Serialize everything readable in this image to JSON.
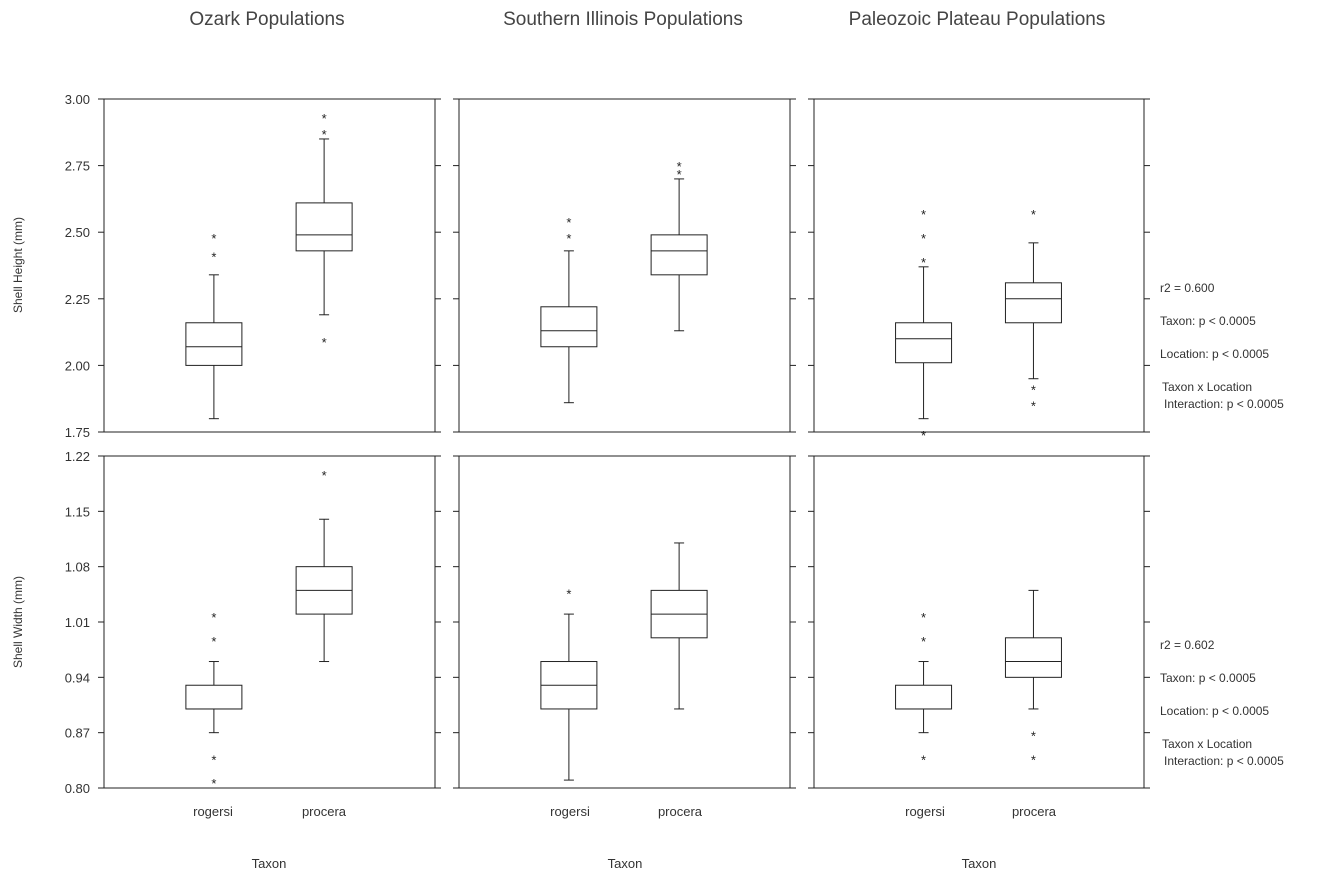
{
  "panel_titles": [
    "Ozark Populations",
    "Southern Illinois Populations",
    "Paleozoic Plateau Populations"
  ],
  "x_label": "Taxon",
  "categories": [
    "rogersi",
    "procera"
  ],
  "stats": {
    "height": {
      "r2": "r2 = 0.600",
      "taxon": "Taxon: p < 0.0005",
      "location": "Location:  p < 0.0005",
      "interaction_1": "Taxon x Location",
      "interaction_2": "Interaction:  p < 0.0005"
    },
    "width": {
      "r2": "r2 = 0.602",
      "taxon": "Taxon: p < 0.0005",
      "location": "Location:  p < 0.0005",
      "interaction_1": "Taxon x Location",
      "interaction_2": "Interaction:  p < 0.0005"
    }
  },
  "chart_data": [
    {
      "type": "boxplot",
      "title": "Ozark Populations",
      "ylabel": "Shell Height (mm)",
      "xlabel": "Taxon",
      "ylim": [
        1.75,
        3.0
      ],
      "yticks": [
        "1.75",
        "2.00",
        "2.25",
        "2.50",
        "2.75",
        "3.00"
      ],
      "categories": [
        "rogersi",
        "procera"
      ],
      "boxes": [
        {
          "category": "rogersi",
          "whisker_low": 1.8,
          "q1": 2.0,
          "median": 2.07,
          "q3": 2.16,
          "whisker_high": 2.34,
          "outliers": [
            2.42,
            2.49
          ]
        },
        {
          "category": "procera",
          "whisker_low": 2.19,
          "q1": 2.43,
          "median": 2.49,
          "q3": 2.61,
          "whisker_high": 2.85,
          "outliers": [
            2.1,
            2.88,
            2.94
          ]
        }
      ]
    },
    {
      "type": "boxplot",
      "title": "Southern Illinois Populations",
      "ylabel": "Shell Height (mm)",
      "xlabel": "Taxon",
      "ylim": [
        1.75,
        3.0
      ],
      "yticks": [
        "1.75",
        "2.00",
        "2.25",
        "2.50",
        "2.75",
        "3.00"
      ],
      "categories": [
        "rogersi",
        "procera"
      ],
      "boxes": [
        {
          "category": "rogersi",
          "whisker_low": 1.86,
          "q1": 2.07,
          "median": 2.13,
          "q3": 2.22,
          "whisker_high": 2.43,
          "outliers": [
            2.49,
            2.55
          ]
        },
        {
          "category": "procera",
          "whisker_low": 2.13,
          "q1": 2.34,
          "median": 2.43,
          "q3": 2.49,
          "whisker_high": 2.7,
          "outliers": [
            2.73,
            2.76
          ]
        }
      ]
    },
    {
      "type": "boxplot",
      "title": "Paleozoic Plateau Populations",
      "ylabel": "Shell Height (mm)",
      "xlabel": "Taxon",
      "ylim": [
        1.75,
        3.0
      ],
      "yticks": [
        "1.75",
        "2.00",
        "2.25",
        "2.50",
        "2.75",
        "3.00"
      ],
      "categories": [
        "rogersi",
        "procera"
      ],
      "boxes": [
        {
          "category": "rogersi",
          "whisker_low": 1.8,
          "q1": 2.01,
          "median": 2.1,
          "q3": 2.16,
          "whisker_high": 2.37,
          "outliers": [
            1.75,
            2.4,
            2.49,
            2.58
          ]
        },
        {
          "category": "procera",
          "whisker_low": 1.95,
          "q1": 2.16,
          "median": 2.25,
          "q3": 2.31,
          "whisker_high": 2.46,
          "outliers": [
            1.86,
            1.92,
            2.58
          ]
        }
      ]
    },
    {
      "type": "boxplot",
      "title": "Ozark Populations",
      "ylabel": "Shell Width (mm)",
      "xlabel": "Taxon",
      "ylim": [
        0.8,
        1.22
      ],
      "yticks": [
        "0.80",
        "0.87",
        "0.94",
        "1.01",
        "1.08",
        "1.15",
        "1.22"
      ],
      "categories": [
        "rogersi",
        "procera"
      ],
      "boxes": [
        {
          "category": "rogersi",
          "whisker_low": 0.87,
          "q1": 0.9,
          "median": 0.9,
          "q3": 0.93,
          "whisker_high": 0.96,
          "outliers": [
            0.81,
            0.84,
            0.99,
            1.02
          ]
        },
        {
          "category": "procera",
          "whisker_low": 0.96,
          "q1": 1.02,
          "median": 1.05,
          "q3": 1.08,
          "whisker_high": 1.14,
          "outliers": [
            1.2
          ]
        }
      ]
    },
    {
      "type": "boxplot",
      "title": "Southern Illinois Populations",
      "ylabel": "Shell Width (mm)",
      "xlabel": "Taxon",
      "ylim": [
        0.8,
        1.22
      ],
      "yticks": [
        "0.80",
        "0.87",
        "0.94",
        "1.01",
        "1.08",
        "1.15",
        "1.22"
      ],
      "categories": [
        "rogersi",
        "procera"
      ],
      "boxes": [
        {
          "category": "rogersi",
          "whisker_low": 0.81,
          "q1": 0.9,
          "median": 0.93,
          "q3": 0.96,
          "whisker_high": 1.02,
          "outliers": [
            1.05
          ]
        },
        {
          "category": "procera",
          "whisker_low": 0.9,
          "q1": 0.99,
          "median": 1.02,
          "q3": 1.05,
          "whisker_high": 1.11,
          "outliers": []
        }
      ]
    },
    {
      "type": "boxplot",
      "title": "Paleozoic Plateau Populations",
      "ylabel": "Shell Width (mm)",
      "xlabel": "Taxon",
      "ylim": [
        0.8,
        1.22
      ],
      "yticks": [
        "0.80",
        "0.87",
        "0.94",
        "1.01",
        "1.08",
        "1.15",
        "1.22"
      ],
      "categories": [
        "rogersi",
        "procera"
      ],
      "boxes": [
        {
          "category": "rogersi",
          "whisker_low": 0.87,
          "q1": 0.9,
          "median": 0.9,
          "q3": 0.93,
          "whisker_high": 0.96,
          "outliers": [
            0.84,
            0.99,
            1.02
          ]
        },
        {
          "category": "procera",
          "whisker_low": 0.9,
          "q1": 0.94,
          "median": 0.96,
          "q3": 0.99,
          "whisker_high": 1.05,
          "outliers": [
            0.84,
            0.87
          ]
        }
      ]
    }
  ]
}
